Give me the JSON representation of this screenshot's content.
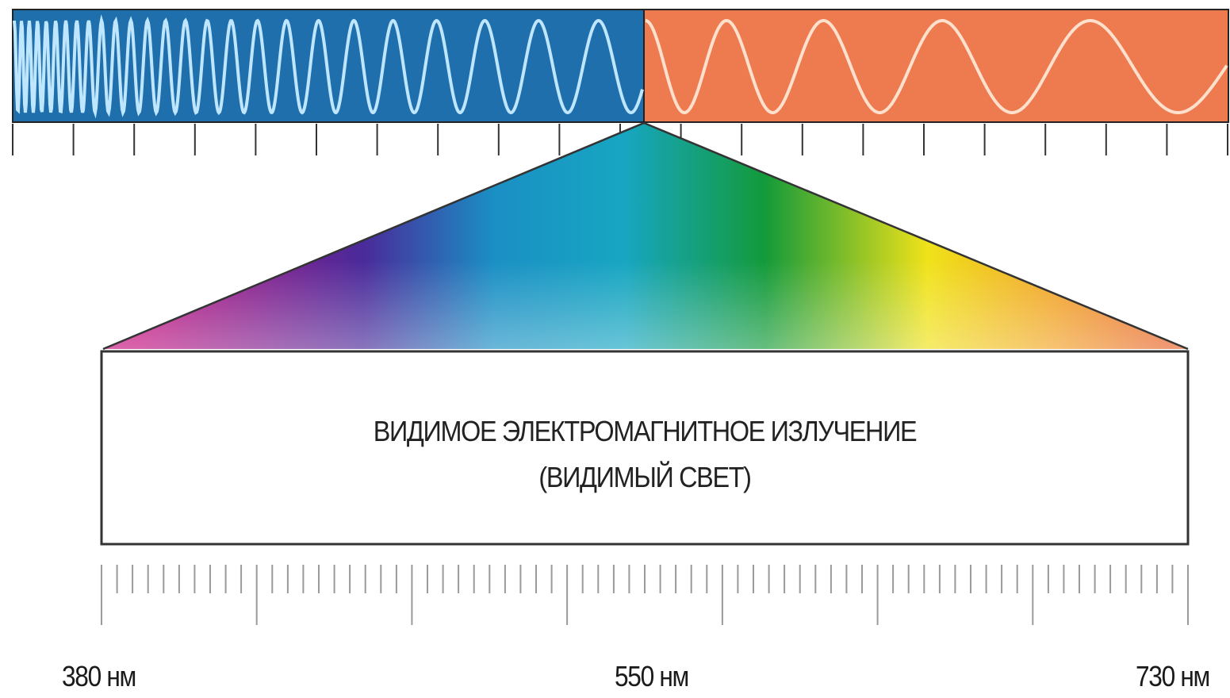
{
  "caption": {
    "line1": "ВИДИМОЕ ЭЛЕКТРОМАГНИТНОЕ ИЗЛУЧЕНИЕ",
    "line2": "(ВИДИМЫЙ СВЕТ)"
  },
  "scale_labels": {
    "min": "380 нм",
    "mid": "550 нм",
    "max": "730 нм"
  },
  "colors": {
    "short_wave_band": "#1f6fad",
    "long_wave_band": "#ee7a4f",
    "spectrum": [
      "#c4127f",
      "#4a2a9a",
      "#1a8fc4",
      "#17a6c2",
      "#139a3a",
      "#f0e21a",
      "#f1a126",
      "#e8652b"
    ]
  }
}
